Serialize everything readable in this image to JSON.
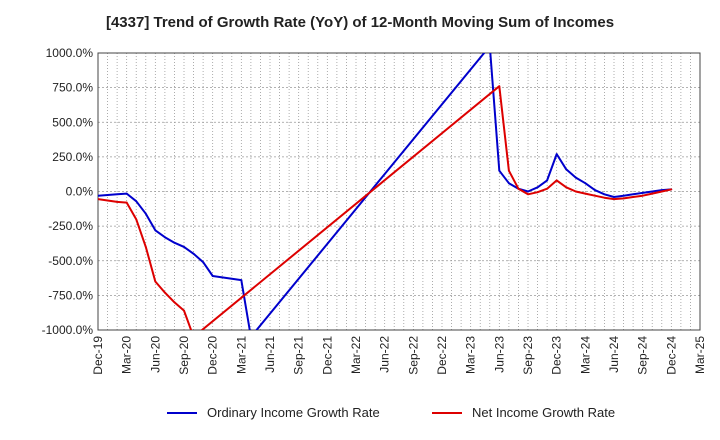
{
  "chart_data": {
    "type": "line",
    "title": "[4337]  Trend of Growth Rate (YoY) of 12-Month Moving Sum of Incomes",
    "xlabel": "",
    "ylabel": "",
    "ylim": [
      -1000,
      1000
    ],
    "y_ticks": [
      "1000.0%",
      "750.0%",
      "500.0%",
      "250.0%",
      "0.0%",
      "-250.0%",
      "-500.0%",
      "-750.0%",
      "-1000.0%"
    ],
    "x_ticks": [
      "Dec-19",
      "Mar-20",
      "Jun-20",
      "Sep-20",
      "Dec-20",
      "Mar-21",
      "Jun-21",
      "Sep-21",
      "Dec-21",
      "Mar-22",
      "Jun-22",
      "Sep-22",
      "Dec-22",
      "Mar-23",
      "Jun-23",
      "Sep-23",
      "Dec-23",
      "Mar-24",
      "Jun-24",
      "Sep-24",
      "Dec-24",
      "Mar-25"
    ],
    "grid": true,
    "legend_position": "bottom",
    "series": [
      {
        "name": "Ordinary Income Growth Rate",
        "color": "#0000cc",
        "points": [
          [
            "Dec-19",
            -30
          ],
          [
            "Jan-20",
            -25
          ],
          [
            "Feb-20",
            -20
          ],
          [
            "Mar-20",
            -15
          ],
          [
            "Apr-20",
            -70
          ],
          [
            "May-20",
            -160
          ],
          [
            "Jun-20",
            -280
          ],
          [
            "Jul-20",
            -330
          ],
          [
            "Aug-20",
            -370
          ],
          [
            "Sep-20",
            -400
          ],
          [
            "Oct-20",
            -450
          ],
          [
            "Nov-20",
            -510
          ],
          [
            "Dec-20",
            -610
          ],
          [
            "Jan-21",
            -620
          ],
          [
            "Feb-21",
            -630
          ],
          [
            "Mar-21",
            -640
          ],
          [
            "Apr-21",
            -1050
          ],
          [
            "May-23",
            1050
          ],
          [
            "Jun-23",
            150
          ],
          [
            "Jul-23",
            60
          ],
          [
            "Aug-23",
            20
          ],
          [
            "Sep-23",
            0
          ],
          [
            "Oct-23",
            30
          ],
          [
            "Nov-23",
            80
          ],
          [
            "Dec-23",
            270
          ],
          [
            "Jan-24",
            160
          ],
          [
            "Feb-24",
            100
          ],
          [
            "Mar-24",
            60
          ],
          [
            "Apr-24",
            10
          ],
          [
            "May-24",
            -20
          ],
          [
            "Jun-24",
            -40
          ],
          [
            "Jul-24",
            -30
          ],
          [
            "Aug-24",
            -20
          ],
          [
            "Sep-24",
            -10
          ],
          [
            "Oct-24",
            0
          ],
          [
            "Nov-24",
            10
          ],
          [
            "Dec-24",
            15
          ]
        ]
      },
      {
        "name": "Net Income Growth Rate",
        "color": "#dd0000",
        "points": [
          [
            "Dec-19",
            -55
          ],
          [
            "Jan-20",
            -65
          ],
          [
            "Feb-20",
            -75
          ],
          [
            "Mar-20",
            -80
          ],
          [
            "Apr-20",
            -200
          ],
          [
            "May-20",
            -400
          ],
          [
            "Jun-20",
            -650
          ],
          [
            "Jul-20",
            -730
          ],
          [
            "Aug-20",
            -800
          ],
          [
            "Sep-20",
            -860
          ],
          [
            "Oct-20",
            -1050
          ],
          [
            "Jun-23",
            760
          ],
          [
            "Jul-23",
            150
          ],
          [
            "Aug-23",
            20
          ],
          [
            "Sep-23",
            -20
          ],
          [
            "Oct-23",
            -5
          ],
          [
            "Nov-23",
            20
          ],
          [
            "Dec-23",
            80
          ],
          [
            "Jan-24",
            30
          ],
          [
            "Feb-24",
            0
          ],
          [
            "Mar-24",
            -15
          ],
          [
            "Apr-24",
            -30
          ],
          [
            "May-24",
            -45
          ],
          [
            "Jun-24",
            -55
          ],
          [
            "Jul-24",
            -50
          ],
          [
            "Aug-24",
            -40
          ],
          [
            "Sep-24",
            -30
          ],
          [
            "Oct-24",
            -15
          ],
          [
            "Nov-24",
            0
          ],
          [
            "Dec-24",
            15
          ]
        ]
      }
    ]
  }
}
